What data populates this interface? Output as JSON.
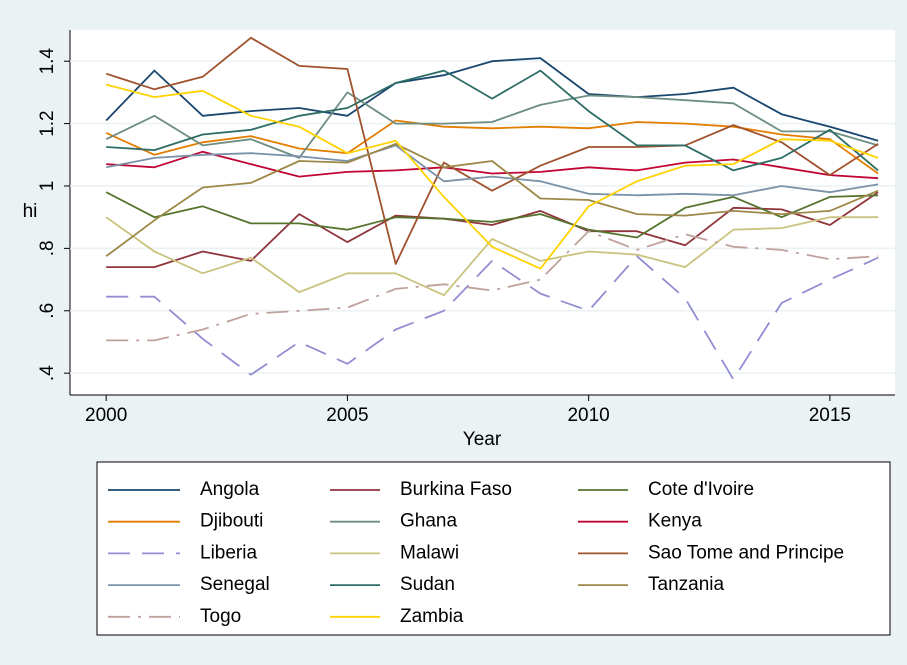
{
  "chart_data": {
    "type": "line",
    "x_label": "Year",
    "y_label": "hi",
    "x": [
      2000,
      2001,
      2002,
      2003,
      2004,
      2005,
      2006,
      2007,
      2008,
      2009,
      2010,
      2011,
      2012,
      2013,
      2014,
      2015,
      2016
    ],
    "xlim": [
      1999.25,
      2016.35
    ],
    "xticks": [
      2000,
      2005,
      2010,
      2015
    ],
    "ylim": [
      0.33,
      1.5
    ],
    "yticks": [
      {
        "value": 0.4,
        "label": ".4"
      },
      {
        "value": 0.6,
        "label": ".6"
      },
      {
        "value": 0.8,
        "label": ".8"
      },
      1,
      1.2,
      1.4
    ],
    "grid": true,
    "legend": "bottom",
    "series": [
      {
        "name": "Angola",
        "color": "#1a476f",
        "dash": "solid",
        "values": [
          1.21,
          1.37,
          1.225,
          1.24,
          1.25,
          1.225,
          1.33,
          1.355,
          1.4,
          1.41,
          1.295,
          1.285,
          1.295,
          1.315,
          1.23,
          1.19,
          1.145
        ]
      },
      {
        "name": "Burkina Faso",
        "color": "#90353b",
        "dash": "solid",
        "values": [
          0.74,
          0.74,
          0.79,
          0.76,
          0.91,
          0.82,
          0.905,
          0.895,
          0.875,
          0.92,
          0.855,
          0.855,
          0.81,
          0.93,
          0.925,
          0.875,
          0.98
        ]
      },
      {
        "name": "Cote d'Ivoire",
        "color": "#55752f",
        "dash": "solid",
        "values": [
          0.98,
          0.9,
          0.935,
          0.88,
          0.88,
          0.86,
          0.9,
          0.895,
          0.885,
          0.91,
          0.86,
          0.835,
          0.93,
          0.965,
          0.9,
          0.965,
          0.97
        ]
      },
      {
        "name": "Djibouti",
        "color": "#e37e00",
        "dash": "solid",
        "values": [
          1.17,
          1.1,
          1.14,
          1.16,
          1.12,
          1.105,
          1.21,
          1.19,
          1.185,
          1.19,
          1.185,
          1.205,
          1.2,
          1.19,
          1.165,
          1.15,
          1.04
        ]
      },
      {
        "name": "Ghana",
        "color": "#6e8e84",
        "dash": "solid",
        "values": [
          1.15,
          1.225,
          1.13,
          1.15,
          1.09,
          1.3,
          1.2,
          1.2,
          1.205,
          1.26,
          1.29,
          1.285,
          1.275,
          1.265,
          1.175,
          1.175,
          1.13
        ]
      },
      {
        "name": "Kenya",
        "color": "#c10534",
        "dash": "solid",
        "values": [
          1.07,
          1.06,
          1.11,
          1.07,
          1.03,
          1.045,
          1.05,
          1.06,
          1.04,
          1.045,
          1.06,
          1.05,
          1.075,
          1.085,
          1.06,
          1.035,
          1.025
        ]
      },
      {
        "name": "Liberia",
        "color": "#938dd2",
        "dash": "dash",
        "values": [
          0.645,
          0.645,
          0.51,
          0.395,
          0.5,
          0.43,
          0.54,
          0.6,
          0.76,
          0.655,
          0.6,
          0.775,
          0.64,
          0.38,
          0.625,
          0.7,
          0.77
        ]
      },
      {
        "name": "Malawi",
        "color": "#cac27e",
        "dash": "solid",
        "values": [
          0.9,
          0.79,
          0.72,
          0.77,
          0.66,
          0.72,
          0.72,
          0.65,
          0.83,
          0.76,
          0.79,
          0.78,
          0.74,
          0.86,
          0.865,
          0.9,
          0.9
        ]
      },
      {
        "name": "Sao Tome and Principe",
        "color": "#a0522d",
        "dash": "solid",
        "values": [
          1.36,
          1.31,
          1.35,
          1.475,
          1.385,
          1.375,
          0.75,
          1.075,
          0.985,
          1.065,
          1.125,
          1.125,
          1.13,
          1.195,
          1.14,
          1.035,
          1.135
        ]
      },
      {
        "name": "Senegal",
        "color": "#7b92a8",
        "dash": "solid",
        "values": [
          1.06,
          1.09,
          1.1,
          1.105,
          1.095,
          1.08,
          1.13,
          1.015,
          1.03,
          1.015,
          0.975,
          0.97,
          0.975,
          0.97,
          1.0,
          0.98,
          1.005
        ]
      },
      {
        "name": "Sudan",
        "color": "#2d6d66",
        "dash": "solid",
        "values": [
          1.125,
          1.115,
          1.165,
          1.18,
          1.225,
          1.25,
          1.33,
          1.37,
          1.28,
          1.37,
          1.24,
          1.13,
          1.13,
          1.05,
          1.09,
          1.18,
          1.05
        ]
      },
      {
        "name": "Tanzania",
        "color": "#9c8847",
        "dash": "solid",
        "values": [
          0.775,
          0.89,
          0.995,
          1.01,
          1.08,
          1.075,
          1.135,
          1.06,
          1.08,
          0.96,
          0.955,
          0.91,
          0.905,
          0.92,
          0.91,
          0.92,
          0.985
        ]
      },
      {
        "name": "Togo",
        "color": "#bfa19c",
        "dash": "dashdot",
        "values": [
          0.505,
          0.505,
          0.54,
          0.59,
          0.6,
          0.61,
          0.67,
          0.685,
          0.665,
          0.7,
          0.855,
          0.795,
          0.845,
          0.805,
          0.795,
          0.765,
          0.775
        ]
      },
      {
        "name": "Zambia",
        "color": "#ffd200",
        "dash": "solid",
        "values": [
          1.325,
          1.285,
          1.305,
          1.225,
          1.19,
          1.105,
          1.145,
          0.965,
          0.805,
          0.735,
          0.935,
          1.015,
          1.065,
          1.07,
          1.15,
          1.145,
          1.09
        ]
      }
    ]
  }
}
